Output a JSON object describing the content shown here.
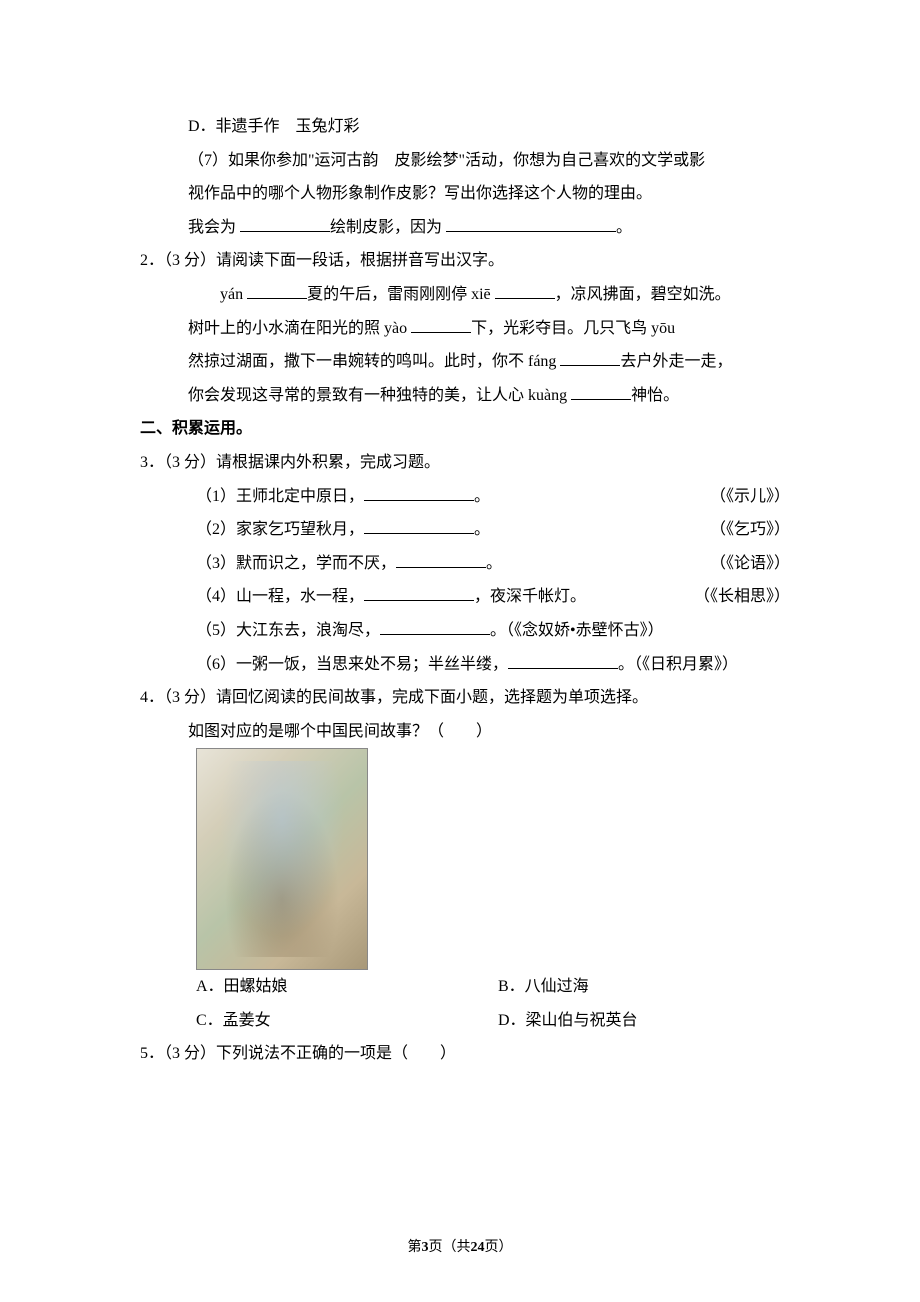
{
  "q1": {
    "optD": "D．非遗手作　玉兔灯彩",
    "sub7_l1": "（7）如果你参加\"运河古韵　皮影绘梦\"活动，你想为自己喜欢的文学或影",
    "sub7_l2": "视作品中的哪个人物形象制作皮影？写出你选择这个人物的理由。",
    "sub7_prefix": "我会为 ",
    "sub7_mid": "绘制皮影，因为 ",
    "sub7_end": "。"
  },
  "q2": {
    "num": "2．（3 分）",
    "stem": "请阅读下面一段话，根据拼音写出汉字。",
    "t1a": "yán ",
    "t1b": "夏的午后，雷雨刚刚停 xiē ",
    "t1c": "，凉风拂面，碧空如洗。",
    "t2a": "树叶上的小水滴在阳光的照 yào ",
    "t2b": "下，光彩夺目。几只飞鸟 yōu",
    "t3a": "然掠过湖面，撒下一串婉转的鸣叫。此时，你不 fáng ",
    "t3b": "去户外走一走，",
    "t4a": "你会发现这寻常的景致有一种独特的美，让人心 kuàng ",
    "t4b": "神怡。"
  },
  "section2": "二、积累运用。",
  "q3": {
    "num": "3．（3 分）",
    "stem": "请根据课内外积累，完成习题。",
    "items": [
      {
        "left_a": "（1）王师北定中原日，",
        "left_b": "。",
        "right": "（《示儿》）"
      },
      {
        "left_a": "（2）家家乞巧望秋月，",
        "left_b": "。",
        "right": "（《乞巧》）"
      },
      {
        "left_a": "（3）默而识之，学而不厌，",
        "left_b": "。",
        "right": "（《论语》）"
      },
      {
        "left_a": "（4）山一程，水一程，",
        "left_b": "，夜深千帐灯。",
        "right": "（《长相思》）"
      },
      {
        "left_a": "（5）大江东去，浪淘尽，",
        "left_b": "。（《念奴娇•赤壁怀古》）",
        "right": ""
      },
      {
        "left_a": "（6）一粥一饭，当思来处不易；半丝半缕，",
        "left_b": "。（《日积月累》）",
        "right": ""
      }
    ]
  },
  "q4": {
    "num": "4．（3 分）",
    "stem": "请回忆阅读的民间故事，完成下面小题，选择题为单项选择。",
    "sub": "如图对应的是哪个中国民间故事？（　　）",
    "optA": "A．田螺姑娘",
    "optB": "B．八仙过海",
    "optC": "C．孟姜女",
    "optD": "D．梁山伯与祝英台"
  },
  "q5": {
    "num": "5．（3 分）",
    "stem": "下列说法不正确的一项是（　　）"
  },
  "footer": {
    "a": "第",
    "b": "3",
    "c": "页（共",
    "d": "24",
    "e": "页）"
  }
}
